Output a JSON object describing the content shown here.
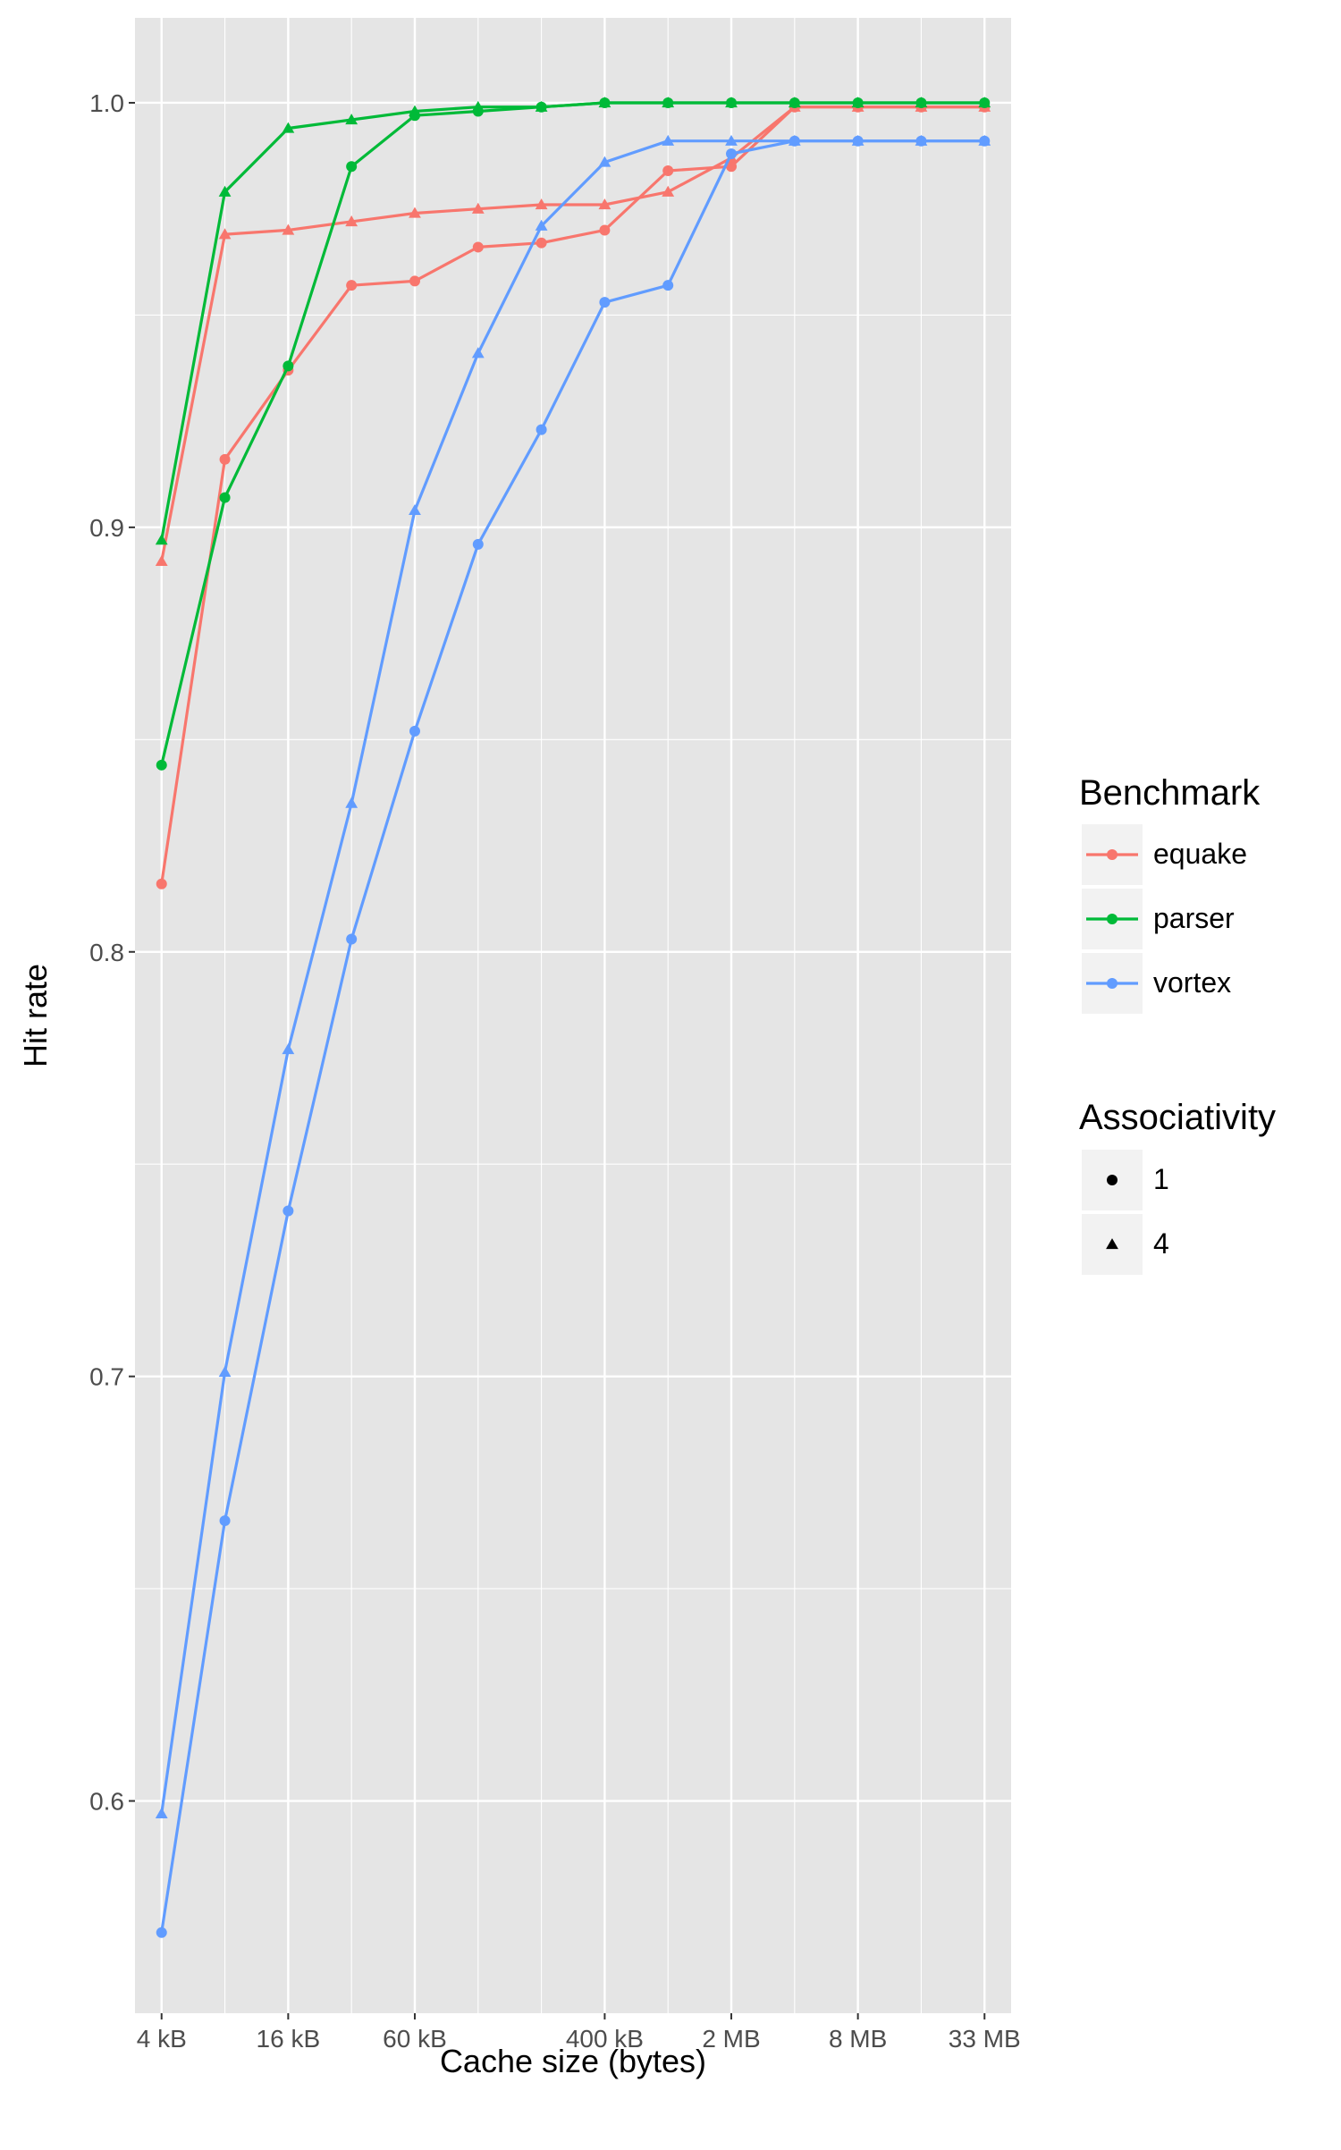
{
  "chart_data": {
    "type": "line",
    "title": "",
    "xlabel": "Cache size (bytes)",
    "ylabel": "Hit rate",
    "x_scale": "log2",
    "x_unit": "bytes",
    "x_tick_labels": [
      {
        "x": 4096,
        "label": "4 kB"
      },
      {
        "x": 16384,
        "label": "16 kB"
      },
      {
        "x": 65536,
        "label": "60 kB"
      },
      {
        "x": 524288,
        "label": "400 kB"
      },
      {
        "x": 2097152,
        "label": "2 MB"
      },
      {
        "x": 8388608,
        "label": "8 MB"
      },
      {
        "x": 33554432,
        "label": "33 MB"
      }
    ],
    "x": [
      4096,
      8192,
      16384,
      32768,
      65536,
      131072,
      262144,
      524288,
      1048576,
      2097152,
      4194304,
      8388608,
      16777216,
      33554432
    ],
    "y_ticks": [
      0.6,
      0.7,
      0.8,
      0.9,
      1.0
    ],
    "y_tick_labels": [
      "0.6",
      "0.7",
      "0.8",
      "0.9",
      "1.0"
    ],
    "ylim": [
      0.55,
      1.02
    ],
    "grid": true,
    "legend_position": "right",
    "colors": {
      "panel_background": "#e5e5e5",
      "grid": "#ffffff",
      "text": "#4d4d4d",
      "title_text": "#000000"
    },
    "legends": {
      "benchmark_title": "Benchmark",
      "associativity_title": "Associativity",
      "associativity_values": [
        "1",
        "4"
      ]
    },
    "series": [
      {
        "name": "equake",
        "associativity": "1",
        "color": "#f8766d",
        "shape": "circle",
        "values": [
          0.816,
          0.916,
          0.937,
          0.957,
          0.958,
          0.966,
          0.967,
          0.97,
          0.984,
          0.985,
          0.999,
          0.999,
          0.999,
          0.999
        ]
      },
      {
        "name": "equake",
        "associativity": "4",
        "color": "#f8766d",
        "shape": "triangle",
        "values": [
          0.892,
          0.969,
          0.97,
          0.972,
          0.974,
          0.975,
          0.976,
          0.976,
          0.979,
          0.987,
          0.999,
          0.999,
          0.999,
          0.999
        ]
      },
      {
        "name": "parser",
        "associativity": "1",
        "color": "#00ba38",
        "shape": "circle",
        "values": [
          0.844,
          0.907,
          0.938,
          0.985,
          0.997,
          0.998,
          0.999,
          1.0,
          1.0,
          1.0,
          1.0,
          1.0,
          1.0,
          1.0
        ]
      },
      {
        "name": "parser",
        "associativity": "4",
        "color": "#00ba38",
        "shape": "triangle",
        "values": [
          0.897,
          0.979,
          0.994,
          0.996,
          0.998,
          0.999,
          0.999,
          1.0,
          1.0,
          1.0,
          1.0,
          1.0,
          1.0,
          1.0
        ]
      },
      {
        "name": "vortex",
        "associativity": "1",
        "color": "#619cff",
        "shape": "circle",
        "values": [
          0.569,
          0.666,
          0.739,
          0.803,
          0.852,
          0.896,
          0.923,
          0.953,
          0.957,
          0.988,
          0.991,
          0.991,
          0.991,
          0.991
        ]
      },
      {
        "name": "vortex",
        "associativity": "4",
        "color": "#619cff",
        "shape": "triangle",
        "values": [
          0.597,
          0.701,
          0.777,
          0.835,
          0.904,
          0.941,
          0.971,
          0.986,
          0.991,
          0.991,
          0.991,
          0.991,
          0.991,
          0.991
        ]
      }
    ]
  }
}
